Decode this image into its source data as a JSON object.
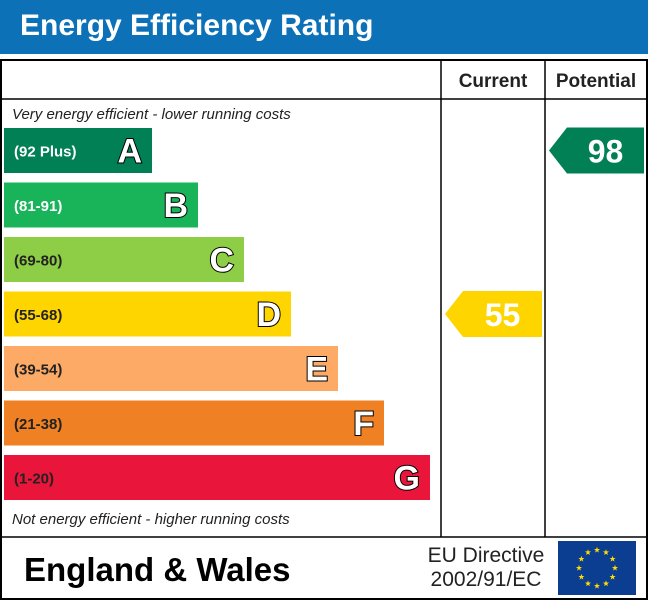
{
  "header": {
    "title": "Energy Efficiency Rating"
  },
  "columns": {
    "current": "Current",
    "potential": "Potential"
  },
  "notes": {
    "top": "Very energy efficient - lower running costs",
    "bottom": "Not energy efficient - higher running costs"
  },
  "footer": {
    "region": "England & Wales",
    "directive_line1": "EU Directive",
    "directive_line2": "2002/91/EC",
    "flag_icon": "eu-flag-icon"
  },
  "chart_data": {
    "type": "bar",
    "bands": [
      {
        "letter": "A",
        "range": "(92 Plus)",
        "color": "#008054"
      },
      {
        "letter": "B",
        "range": "(81-91)",
        "color": "#19b459"
      },
      {
        "letter": "C",
        "range": "(69-80)",
        "color": "#8dce46"
      },
      {
        "letter": "D",
        "range": "(55-68)",
        "color": "#ffd500"
      },
      {
        "letter": "E",
        "range": "(39-54)",
        "color": "#fcaa65"
      },
      {
        "letter": "F",
        "range": "(21-38)",
        "color": "#ef8023"
      },
      {
        "letter": "G",
        "range": "(1-20)",
        "color": "#e9153b"
      }
    ],
    "current": {
      "value": 55,
      "band": "D",
      "color": "#ffd500"
    },
    "potential": {
      "value": 98,
      "band": "A",
      "color": "#008054"
    }
  }
}
